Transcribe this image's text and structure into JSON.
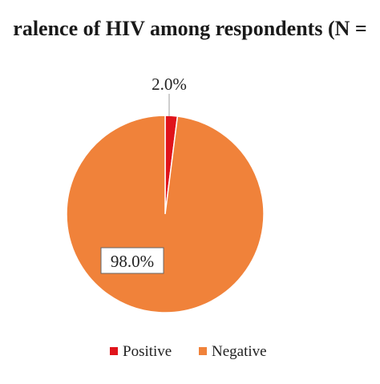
{
  "chart_data": {
    "type": "pie",
    "title": "ralence  of HIV among respondents (N =",
    "slices": [
      {
        "name": "Positive",
        "value": 2.0,
        "label": "2.0%",
        "color": "#e0141b"
      },
      {
        "name": "Negative",
        "value": 98.0,
        "label": "98.0%",
        "color": "#f0823a"
      }
    ],
    "legend": {
      "placement": "bottom",
      "entries": [
        {
          "name": "Positive",
          "color": "#e0141b"
        },
        {
          "name": "Negative",
          "color": "#f0823a"
        }
      ]
    }
  }
}
